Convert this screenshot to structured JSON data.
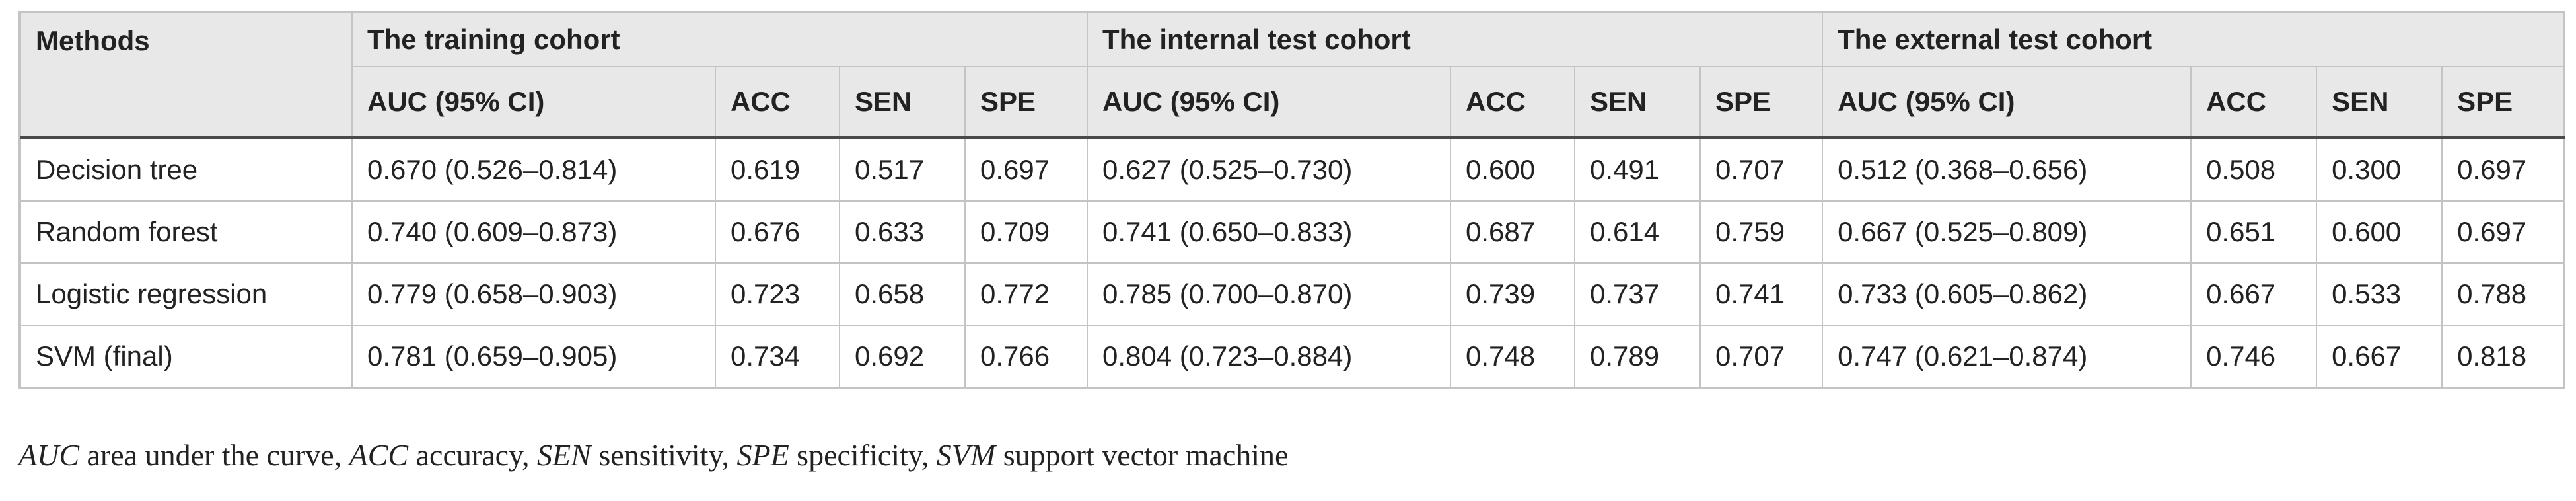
{
  "table": {
    "methods_header": "Methods",
    "groups": [
      "The training cohort",
      "The internal test cohort",
      "The external test cohort"
    ],
    "subheaders": [
      "AUC (95% CI)",
      "ACC",
      "SEN",
      "SPE"
    ],
    "rows": [
      {
        "method": "Decision tree",
        "cells": [
          "0.670 (0.526–0.814)",
          "0.619",
          "0.517",
          "0.697",
          "0.627 (0.525–0.730)",
          "0.600",
          "0.491",
          "0.707",
          "0.512 (0.368–0.656)",
          "0.508",
          "0.300",
          "0.697"
        ]
      },
      {
        "method": "Random forest",
        "cells": [
          "0.740 (0.609–0.873)",
          "0.676",
          "0.633",
          "0.709",
          "0.741 (0.650–0.833)",
          "0.687",
          "0.614",
          "0.759",
          "0.667 (0.525–0.809)",
          "0.651",
          "0.600",
          "0.697"
        ]
      },
      {
        "method": "Logistic regression",
        "cells": [
          "0.779 (0.658–0.903)",
          "0.723",
          "0.658",
          "0.772",
          "0.785 (0.700–0.870)",
          "0.739",
          "0.737",
          "0.741",
          "0.733 (0.605–0.862)",
          "0.667",
          "0.533",
          "0.788"
        ]
      },
      {
        "method": "SVM (final)",
        "cells": [
          "0.781 (0.659–0.905)",
          "0.734",
          "0.692",
          "0.766",
          "0.804 (0.723–0.884)",
          "0.748",
          "0.789",
          "0.707",
          "0.747 (0.621–0.874)",
          "0.746",
          "0.667",
          "0.818"
        ]
      }
    ]
  },
  "footnote": [
    {
      "abbr": "AUC",
      "text": " area under the curve, "
    },
    {
      "abbr": "ACC",
      "text": " accuracy, "
    },
    {
      "abbr": "SEN",
      "text": " sensitivity, "
    },
    {
      "abbr": "SPE",
      "text": " specificity, "
    },
    {
      "abbr": "SVM",
      "text": " support vector machine"
    }
  ],
  "colors": {
    "header_bg": "#e8e8e8",
    "border": "#c4c4c4",
    "rule": "#4a4a4a",
    "text": "#222222"
  }
}
